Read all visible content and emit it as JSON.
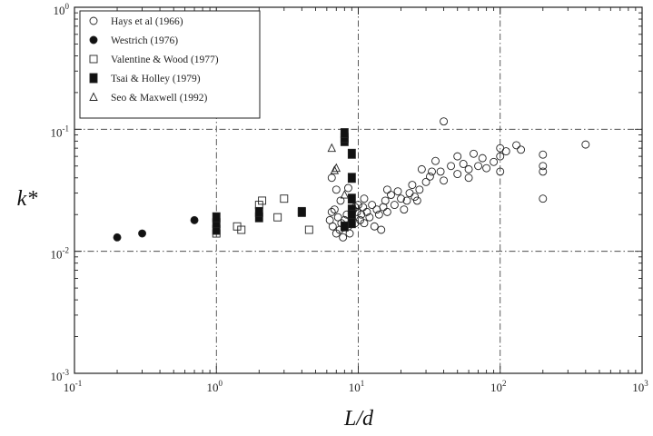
{
  "chart_data": {
    "type": "scatter",
    "xlabel": "L/d",
    "ylabel": "k*",
    "x_scale": "log",
    "y_scale": "log",
    "xlim": [
      0.1,
      1000
    ],
    "ylim": [
      0.001,
      1
    ],
    "x_ticks": [
      {
        "value": 0.1,
        "base": "10",
        "exp": "-1"
      },
      {
        "value": 1,
        "base": "10",
        "exp": "0"
      },
      {
        "value": 10,
        "base": "10",
        "exp": "1"
      },
      {
        "value": 100,
        "base": "10",
        "exp": "2"
      },
      {
        "value": 1000,
        "base": "10",
        "exp": "3"
      }
    ],
    "y_ticks": [
      {
        "value": 0.001,
        "base": "10",
        "exp": "-3"
      },
      {
        "value": 0.01,
        "base": "10",
        "exp": "-2"
      },
      {
        "value": 0.1,
        "base": "10",
        "exp": "-1"
      },
      {
        "value": 1,
        "base": "10",
        "exp": "0"
      }
    ],
    "grid": "dash-dot at decades",
    "legend_position": "top-left",
    "series": [
      {
        "name": "Hays et al (1966)",
        "marker": "open-circle",
        "points": [
          [
            6.3,
            0.018
          ],
          [
            6.5,
            0.021
          ],
          [
            6.6,
            0.016
          ],
          [
            6.8,
            0.022
          ],
          [
            7,
            0.014
          ],
          [
            7.2,
            0.019
          ],
          [
            7.4,
            0.015
          ],
          [
            7.6,
            0.017
          ],
          [
            7.8,
            0.013
          ],
          [
            8,
            0.018
          ],
          [
            8.3,
            0.02
          ],
          [
            8.5,
            0.016
          ],
          [
            8.7,
            0.014
          ],
          [
            9,
            0.019
          ],
          [
            9.2,
            0.022
          ],
          [
            9.5,
            0.017
          ],
          [
            9.8,
            0.021
          ],
          [
            10,
            0.024
          ],
          [
            10.3,
            0.018
          ],
          [
            10.5,
            0.02
          ],
          [
            10.8,
            0.023
          ],
          [
            11,
            0.017
          ],
          [
            11.5,
            0.021
          ],
          [
            12,
            0.019
          ],
          [
            12.5,
            0.024
          ],
          [
            13,
            0.016
          ],
          [
            13.5,
            0.022
          ],
          [
            14,
            0.02
          ],
          [
            14.5,
            0.015
          ],
          [
            15,
            0.023
          ],
          [
            15.5,
            0.026
          ],
          [
            16,
            0.021
          ],
          [
            17,
            0.029
          ],
          [
            18,
            0.024
          ],
          [
            19,
            0.031
          ],
          [
            20,
            0.027
          ],
          [
            21,
            0.022
          ],
          [
            22,
            0.026
          ],
          [
            23,
            0.03
          ],
          [
            24,
            0.035
          ],
          [
            25,
            0.028
          ],
          [
            27,
            0.032
          ],
          [
            28,
            0.047
          ],
          [
            30,
            0.037
          ],
          [
            32,
            0.041
          ],
          [
            35,
            0.055
          ],
          [
            38,
            0.045
          ],
          [
            40,
            0.038
          ],
          [
            40,
            0.116
          ],
          [
            45,
            0.05
          ],
          [
            50,
            0.043
          ],
          [
            50,
            0.06
          ],
          [
            55,
            0.052
          ],
          [
            60,
            0.047
          ],
          [
            65,
            0.063
          ],
          [
            70,
            0.05
          ],
          [
            75,
            0.058
          ],
          [
            80,
            0.048
          ],
          [
            90,
            0.054
          ],
          [
            100,
            0.07
          ],
          [
            100,
            0.06
          ],
          [
            100,
            0.045
          ],
          [
            110,
            0.066
          ],
          [
            130,
            0.074
          ],
          [
            140,
            0.068
          ],
          [
            200,
            0.062
          ],
          [
            200,
            0.05
          ],
          [
            200,
            0.045
          ],
          [
            200,
            0.027
          ],
          [
            400,
            0.075
          ],
          [
            6.5,
            0.04
          ],
          [
            7,
            0.032
          ],
          [
            7.5,
            0.026
          ],
          [
            8.5,
            0.033
          ],
          [
            9.5,
            0.023
          ],
          [
            11,
            0.027
          ],
          [
            16,
            0.032
          ],
          [
            26,
            0.026
          ],
          [
            33,
            0.045
          ],
          [
            60,
            0.04
          ]
        ]
      },
      {
        "name": "Westrich (1976)",
        "marker": "filled-circle",
        "points": [
          [
            0.2,
            0.013
          ],
          [
            0.3,
            0.014
          ],
          [
            0.7,
            0.018
          ]
        ]
      },
      {
        "name": "Valentine & Wood (1977)",
        "marker": "open-square",
        "points": [
          [
            1,
            0.014
          ],
          [
            1.4,
            0.016
          ],
          [
            1.5,
            0.015
          ],
          [
            2,
            0.024
          ],
          [
            2.1,
            0.026
          ],
          [
            2.7,
            0.019
          ],
          [
            3,
            0.027
          ],
          [
            4,
            0.021
          ],
          [
            4.5,
            0.015
          ]
        ]
      },
      {
        "name": "Tsai & Holley (1979)",
        "marker": "filled-square",
        "points": [
          [
            1,
            0.015
          ],
          [
            1,
            0.017
          ],
          [
            1,
            0.019
          ],
          [
            2,
            0.019
          ],
          [
            2,
            0.021
          ],
          [
            4,
            0.021
          ],
          [
            8,
            0.08
          ],
          [
            8,
            0.085
          ],
          [
            8,
            0.093
          ],
          [
            9,
            0.063
          ],
          [
            9,
            0.04
          ],
          [
            9,
            0.027
          ],
          [
            9,
            0.022
          ],
          [
            9,
            0.02
          ],
          [
            9,
            0.017
          ],
          [
            8,
            0.016
          ]
        ]
      },
      {
        "name": "Seo & Maxwell (1992)",
        "marker": "open-triangle",
        "points": [
          [
            6.5,
            0.07
          ],
          [
            6.8,
            0.046
          ],
          [
            7,
            0.048
          ],
          [
            8,
            0.029
          ]
        ]
      }
    ]
  }
}
